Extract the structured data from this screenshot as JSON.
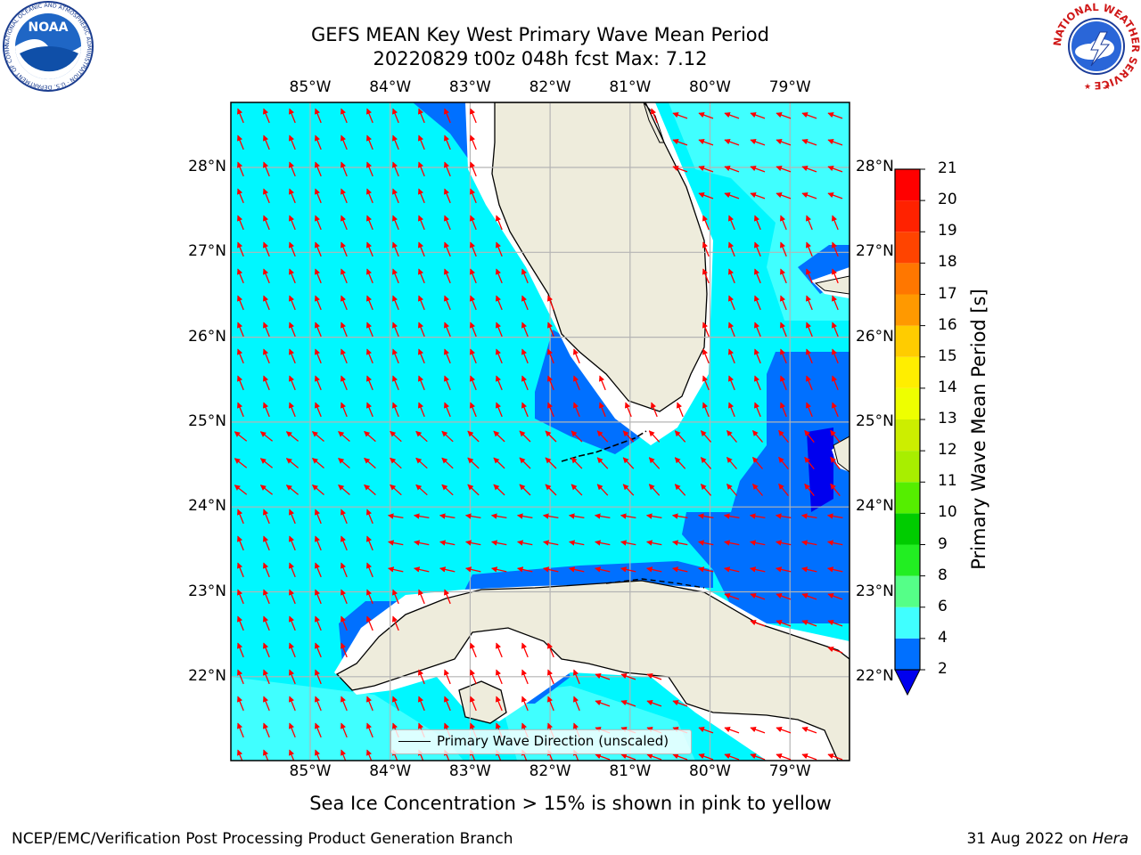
{
  "title": {
    "line1": "GEFS MEAN Key West Primary Wave Mean Period",
    "line2": "20220829 t00z 048h fcst   Max: 7.12"
  },
  "map": {
    "lat_labels": [
      "28°N",
      "27°N",
      "26°N",
      "25°N",
      "24°N",
      "23°N",
      "22°N"
    ],
    "lon_labels": [
      "85°W",
      "84°W",
      "83°W",
      "82°W",
      "81°W",
      "80°W",
      "79°W"
    ],
    "extent": {
      "lon_min": -86.0,
      "lon_max": -78.3,
      "lat_min": 21.05,
      "lat_max": 28.75
    },
    "legend_label": "Primary Wave Direction (unscaled)",
    "sea_color": "#00f7ff",
    "land_color": "#eeecdc",
    "arrow_color": "#ff0000"
  },
  "colorbar": {
    "label": "Primary Wave Mean Period [s]",
    "ticks": [
      "2",
      "4",
      "6",
      "8",
      "9",
      "10",
      "11",
      "12",
      "13",
      "14",
      "15",
      "16",
      "17",
      "18",
      "19",
      "20",
      "21"
    ],
    "colors": [
      "#0070ff",
      "#00e0ff",
      "#40ffff",
      "#80ffff",
      "#aaffff",
      "#55ff88",
      "#22ee22",
      "#00cc00",
      "#55ee00",
      "#a8ee00",
      "#ccee00",
      "#eeff00",
      "#ffee00",
      "#ffcc00",
      "#ff9900",
      "#ff7700",
      "#ff4400",
      "#ff2200",
      "#ff0000"
    ],
    "under_color": "#0000ee"
  },
  "subtitle": "Sea Ice Concentration > 15% is shown in pink to yellow",
  "footer": {
    "left": "NCEP/EMC/Verification Post Processing Product Generation Branch",
    "right_date": "31 Aug 2022 on ",
    "right_host": "Hera"
  },
  "logos": {
    "noaa_text": "NOAA",
    "noaa_ring": "NATIONAL OCEANIC AND ATMOSPHERIC ADMINISTRATION · U.S. DEPARTMENT OF COMMERCE",
    "nws_ring": "NATIONAL WEATHER SERVICE"
  }
}
